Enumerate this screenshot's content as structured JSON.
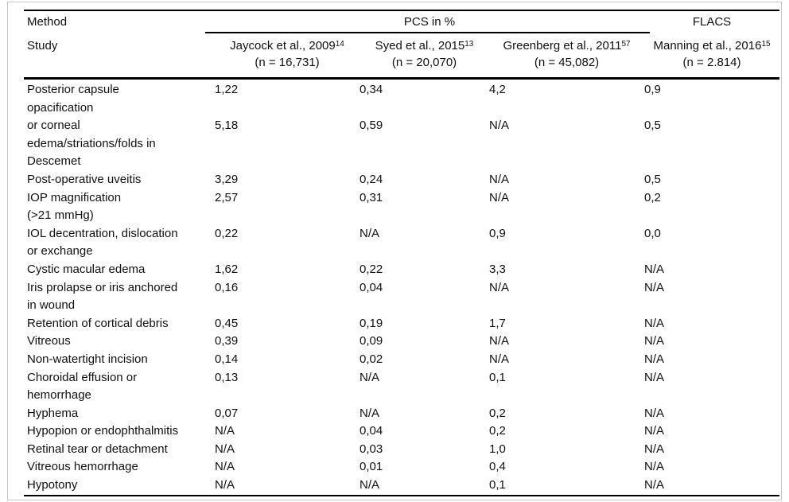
{
  "table": {
    "corner": {
      "method_label": "Method",
      "study_label": "Study"
    },
    "groups": {
      "pcs": "PCS in %",
      "flacs": "FLACS"
    },
    "studies": [
      {
        "name": "Jaycock et al., 2009",
        "ref": "14",
        "n": "(n = 16,731)"
      },
      {
        "name": "Syed et al., 2015",
        "ref": "13",
        "n": "(n = 20,070)"
      },
      {
        "name": "Greenberg et al., 2011",
        "ref": "57",
        "n": "(n = 45,082)"
      },
      {
        "name": "Manning et al., 2016",
        "ref": "15",
        "n": "(n = 2.814)"
      }
    ],
    "rows": [
      {
        "label": "Posterior capsule\nopacification",
        "values": [
          "1,22",
          "0,34",
          "4,2",
          "0,9"
        ]
      },
      {
        "label": "or corneal\nedema/striations/folds in\nDescemet",
        "values": [
          "5,18",
          "0,59",
          "N/A",
          "0,5"
        ]
      },
      {
        "label": "Post-operative uveitis",
        "values": [
          "3,29",
          "0,24",
          "N/A",
          "0,5"
        ]
      },
      {
        "label": "IOP magnification\n(>21 mmHg)",
        "values": [
          "2,57",
          "0,31",
          "N/A",
          "0,2"
        ]
      },
      {
        "label": "IOL decentration, dislocation\nor exchange",
        "values": [
          "0,22",
          "N/A",
          "0,9",
          "0,0"
        ]
      },
      {
        "label": "Cystic macular edema",
        "values": [
          "1,62",
          "0,22",
          "3,3",
          "N/A"
        ]
      },
      {
        "label": "Iris prolapse or iris anchored\nin wound",
        "values": [
          "0,16",
          "0,04",
          "N/A",
          "N/A"
        ]
      },
      {
        "label": "Retention of cortical debris",
        "values": [
          "0,45",
          "0,19",
          "1,7",
          "N/A"
        ]
      },
      {
        "label": "Vitreous",
        "values": [
          "0,39",
          "0,09",
          "N/A",
          "N/A"
        ]
      },
      {
        "label": "Non-watertight incision",
        "values": [
          "0,14",
          "0,02",
          "N/A",
          "N/A"
        ]
      },
      {
        "label": "Choroidal effusion or\nhemorrhage",
        "values": [
          "0,13",
          "N/A",
          "0,1",
          "N/A"
        ]
      },
      {
        "label": "Hyphema",
        "values": [
          "0,07",
          "N/A",
          "0,2",
          "N/A"
        ]
      },
      {
        "label": "Hypopion or endophthalmitis",
        "values": [
          "N/A",
          "0,04",
          "0,2",
          "N/A"
        ]
      },
      {
        "label": "Retinal tear or detachment",
        "values": [
          "N/A",
          "0,03",
          "1,0",
          "N/A"
        ]
      },
      {
        "label": "Vitreous hemorrhage",
        "values": [
          "N/A",
          "0,01",
          "0,4",
          "N/A"
        ]
      },
      {
        "label": "Hypotony",
        "values": [
          "N/A",
          "N/A",
          "0,1",
          "N/A"
        ]
      }
    ],
    "colors": {
      "rule": "#000000",
      "text": "#111111",
      "frame": "#c6c6c6",
      "background": "#ffffff"
    }
  }
}
